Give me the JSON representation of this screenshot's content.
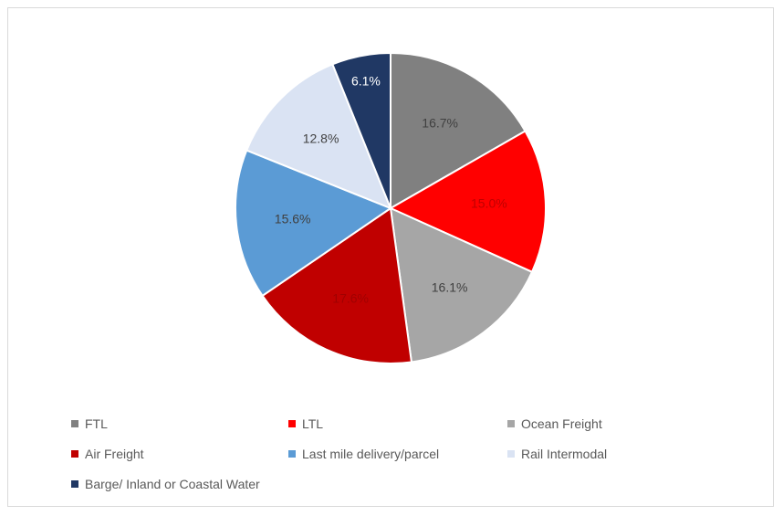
{
  "chart_data": {
    "type": "pie",
    "title": "",
    "slices": [
      {
        "name": "FTL",
        "value": 16.7,
        "label": "16.7%",
        "color": "#808080",
        "label_color": "#404040"
      },
      {
        "name": "LTL",
        "value": 15.0,
        "label": "15.0%",
        "color": "#ff0000",
        "label_color": "#c00000"
      },
      {
        "name": "Ocean Freight",
        "value": 16.1,
        "label": "16.1%",
        "color": "#a6a6a6",
        "label_color": "#404040"
      },
      {
        "name": "Air Freight",
        "value": 17.6,
        "label": "17.6%",
        "color": "#c00000",
        "label_color": "#a00000"
      },
      {
        "name": "Last mile delivery/parcel",
        "value": 15.6,
        "label": "15.6%",
        "color": "#5b9bd5",
        "label_color": "#404040"
      },
      {
        "name": "Rail Intermodal",
        "value": 12.8,
        "label": "12.8%",
        "color": "#dae3f3",
        "label_color": "#404040"
      },
      {
        "name": "Barge/ Inland or Coastal Water",
        "value": 6.1,
        "label": "6.1%",
        "color": "#203864",
        "label_color": "#ffffff"
      }
    ],
    "start_angle": "12 o'clock",
    "direction": "clockwise",
    "legend_position": "bottom"
  }
}
